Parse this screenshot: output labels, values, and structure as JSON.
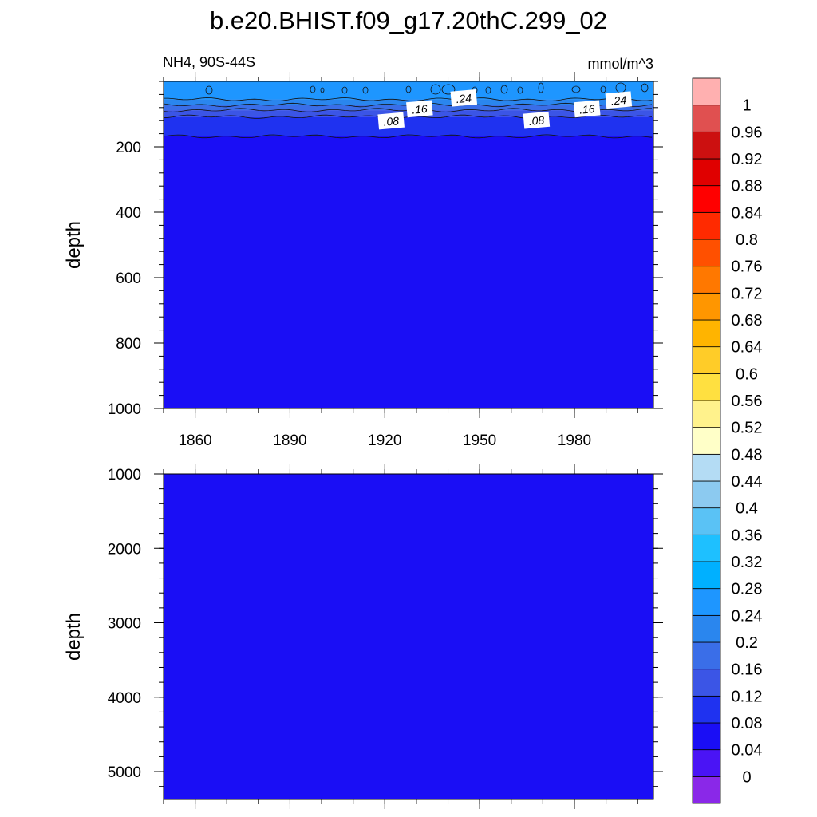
{
  "chart_data": {
    "type": "heatmap",
    "title": "b.e20.BHIST.f09_g17.20thC.299_02",
    "left_subtitle": "NH4, 90S-44S",
    "right_subtitle": "mmol/m^3",
    "xlim": [
      1850,
      2005
    ],
    "x_ticks": [
      1860,
      1890,
      1920,
      1950,
      1980
    ],
    "x_tick_labels": [
      "1860",
      "1890",
      "1920",
      "1950",
      "1980"
    ],
    "panels": [
      {
        "name": "upper",
        "ylabel": "depth",
        "ylim": [
          0,
          1000
        ],
        "y_ticks": [
          200,
          400,
          600,
          800,
          1000
        ],
        "y_tick_labels": [
          "200",
          "400",
          "600",
          "800",
          "1000"
        ],
        "depth_bands": [
          {
            "top": 0,
            "bottom": 55,
            "level": 0.24
          },
          {
            "top": 55,
            "bottom": 72,
            "level": 0.2
          },
          {
            "top": 72,
            "bottom": 88,
            "level": 0.16
          },
          {
            "top": 88,
            "bottom": 108,
            "level": 0.12
          },
          {
            "top": 108,
            "bottom": 168,
            "level": 0.08
          },
          {
            "top": 168,
            "bottom": 1000,
            "level": 0.04
          }
        ],
        "contour_labels": [
          {
            "text": ".24",
            "x": 1945,
            "depth": 52
          },
          {
            "text": ".24",
            "x": 1994,
            "depth": 58
          },
          {
            "text": ".16",
            "x": 1931,
            "depth": 85
          },
          {
            "text": ".16",
            "x": 1984,
            "depth": 85
          },
          {
            "text": ".08",
            "x": 1922,
            "depth": 122
          },
          {
            "text": ".08",
            "x": 1968,
            "depth": 120
          }
        ]
      },
      {
        "name": "lower",
        "ylabel": "depth",
        "ylim": [
          1000,
          5375
        ],
        "y_ticks": [
          1000,
          2000,
          3000,
          4000,
          5000
        ],
        "y_tick_labels": [
          "1000",
          "2000",
          "3000",
          "4000",
          "5000"
        ],
        "depth_bands": [
          {
            "top": 1000,
            "bottom": 5375,
            "level": 0.04
          }
        ],
        "contour_labels": []
      }
    ],
    "colorbar": {
      "levels": [
        0,
        0.04,
        0.08,
        0.12,
        0.16,
        0.2,
        0.24,
        0.28,
        0.32,
        0.36,
        0.4,
        0.44,
        0.48,
        0.52,
        0.56,
        0.6,
        0.64,
        0.68,
        0.72,
        0.76,
        0.8,
        0.84,
        0.88,
        0.92,
        0.96,
        1
      ],
      "labels": [
        "0",
        "0.04",
        "0.08",
        "0.12",
        "0.16",
        "0.2",
        "0.24",
        "0.28",
        "0.32",
        "0.36",
        "0.4",
        "0.44",
        "0.48",
        "0.52",
        "0.56",
        "0.6",
        "0.64",
        "0.68",
        "0.72",
        "0.76",
        "0.8",
        "0.84",
        "0.88",
        "0.92",
        "0.96",
        "1"
      ],
      "colors": [
        "#8a28e8",
        "#4a14f5",
        "#1a0ef5",
        "#1f32f0",
        "#3b55e6",
        "#3a6ee8",
        "#2a86ee",
        "#1e96ff",
        "#00b0ff",
        "#1ec0ff",
        "#5ac2f5",
        "#8ccaf0",
        "#b4dcf4",
        "#ffffc8",
        "#fff28c",
        "#ffe040",
        "#ffcc28",
        "#ffb400",
        "#ff9600",
        "#ff7800",
        "#ff5000",
        "#ff2a00",
        "#ff0000",
        "#e00000",
        "#cc1010",
        "#e05050",
        "#ffb0b0"
      ]
    }
  }
}
